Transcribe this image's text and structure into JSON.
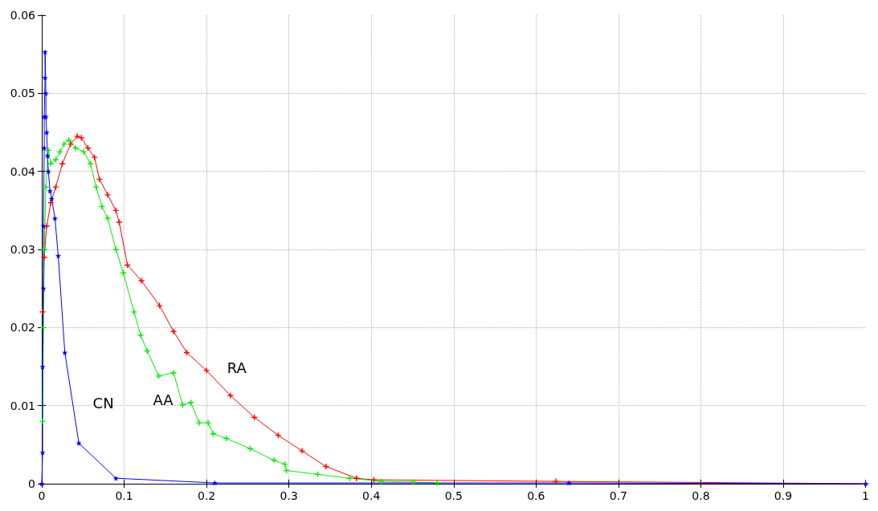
{
  "chart_data": {
    "type": "line",
    "xlim": [
      0,
      1
    ],
    "xticks": [
      0,
      0.1,
      0.2,
      0.3,
      0.4,
      0.5,
      0.6,
      0.7,
      0.8,
      0.9,
      1
    ],
    "ylim": [
      0,
      0.06
    ],
    "yticks": [
      0,
      0.01,
      0.02,
      0.03,
      0.04,
      0.05,
      0.06
    ],
    "grid": true,
    "legend": false,
    "series": [
      {
        "name": "RA",
        "color": "#ff0000",
        "marker": "cross",
        "x": [
          0.001,
          0.003,
          0.006,
          0.011,
          0.017,
          0.025,
          0.035,
          0.043,
          0.048,
          0.056,
          0.064,
          0.07,
          0.08,
          0.09,
          0.094,
          0.104,
          0.121,
          0.143,
          0.16,
          0.176,
          0.2,
          0.229,
          0.258,
          0.287,
          0.316,
          0.345,
          0.382,
          0.403,
          0.624,
          1
        ],
        "values": [
          0.022,
          0.029,
          0.033,
          0.036,
          0.038,
          0.041,
          0.0435,
          0.0445,
          0.0443,
          0.043,
          0.0418,
          0.039,
          0.037,
          0.035,
          0.0335,
          0.028,
          0.026,
          0.0228,
          0.0195,
          0.0168,
          0.0145,
          0.0113,
          0.0085,
          0.0062,
          0.0042,
          0.0022,
          0.0007,
          0.0005,
          0.0003,
          0
        ]
      },
      {
        "name": "AA",
        "color": "#00ee00",
        "marker": "cross",
        "x": [
          0.001,
          0.002,
          0.003,
          0.005,
          0.008,
          0.011,
          0.017,
          0.022,
          0.027,
          0.033,
          0.041,
          0.051,
          0.059,
          0.066,
          0.073,
          0.08,
          0.09,
          0.099,
          0.112,
          0.12,
          0.128,
          0.142,
          0.16,
          0.171,
          0.181,
          0.191,
          0.202,
          0.208,
          0.224,
          0.253,
          0.282,
          0.295,
          0.297,
          0.335,
          0.374,
          0.412,
          0.451,
          0.48
        ],
        "values": [
          0.008,
          0.02,
          0.03,
          0.038,
          0.0427,
          0.041,
          0.0415,
          0.0425,
          0.0435,
          0.044,
          0.043,
          0.0425,
          0.041,
          0.038,
          0.0355,
          0.034,
          0.03,
          0.027,
          0.022,
          0.019,
          0.017,
          0.0138,
          0.0142,
          0.0101,
          0.0104,
          0.0078,
          0.0078,
          0.0064,
          0.0058,
          0.0045,
          0.003,
          0.0025,
          0.0017,
          0.0012,
          0.0007,
          0.0003,
          0.0002,
          0.0001
        ]
      },
      {
        "name": "CN",
        "color": "#0000ff",
        "marker": "star",
        "x": [
          0,
          0.001,
          0.001,
          0.002,
          0.002,
          0.003,
          0.003,
          0.004,
          0.004,
          0.005,
          0.005,
          0.006,
          0.007,
          0.008,
          0.01,
          0.012,
          0.016,
          0.02,
          0.028,
          0.045,
          0.09,
          0.21,
          0.64,
          1
        ],
        "values": [
          0,
          0.004,
          0.015,
          0.025,
          0.033,
          0.043,
          0.047,
          0.052,
          0.0553,
          0.05,
          0.047,
          0.045,
          0.042,
          0.04,
          0.0375,
          0.0365,
          0.034,
          0.0292,
          0.0168,
          0.0052,
          0.0007,
          0.0001,
          0.0001,
          0
        ]
      }
    ]
  }
}
